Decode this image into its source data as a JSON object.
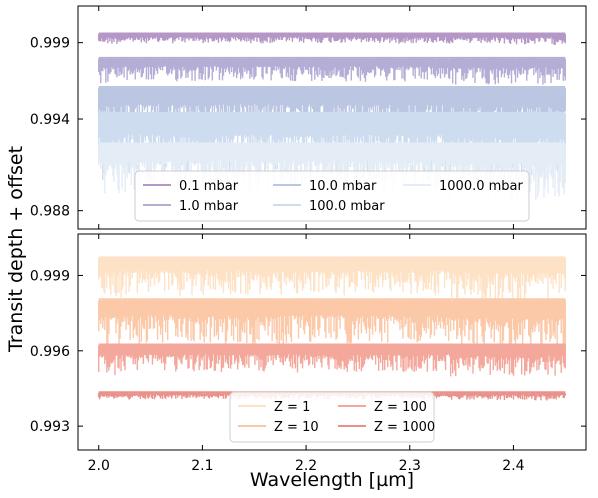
{
  "figure": {
    "ylabel": "Transit depth + offset",
    "xlabel": "Wavelength [µm]"
  },
  "chart_data": [
    {
      "type": "line",
      "panel": "top",
      "x_range": [
        2.0,
        2.45
      ],
      "xlim": [
        1.98,
        2.47
      ],
      "ylim": [
        0.9868,
        1.0014
      ],
      "yticks": [
        0.988,
        0.994,
        0.999
      ],
      "xticks": [
        2.0,
        2.1,
        2.2,
        2.3,
        2.4
      ],
      "xtick_labels_visible": false,
      "legend": {
        "placement": "lower-center",
        "columns": 3
      },
      "series": [
        {
          "name": "0.1 mbar",
          "baseline": 0.9996,
          "absorption_depth": 0.0006,
          "color": "#b497c6"
        },
        {
          "name": "1.0 mbar",
          "baseline": 0.998,
          "absorption_depth": 0.0015,
          "color": "#b4aed6"
        },
        {
          "name": "10.0 mbar",
          "baseline": 0.9961,
          "absorption_depth": 0.0032,
          "color": "#bac6e2"
        },
        {
          "name": "100.0 mbar",
          "baseline": 0.9944,
          "absorption_depth": 0.004,
          "color": "#cddcef"
        },
        {
          "name": "1000.0 mbar",
          "baseline": 0.9924,
          "absorption_depth": 0.0032,
          "color": "#e4ecf6"
        }
      ]
    },
    {
      "type": "line",
      "panel": "bottom",
      "x_range": [
        2.0,
        2.45
      ],
      "xlim": [
        1.98,
        2.47
      ],
      "ylim": [
        0.99205,
        1.00065
      ],
      "yticks": [
        0.993,
        0.996,
        0.999
      ],
      "xticks": [
        2.0,
        2.1,
        2.2,
        2.3,
        2.4
      ],
      "xlabel": "Wavelength [µm]",
      "legend": {
        "placement": "lower-center",
        "columns": 2
      },
      "series": [
        {
          "name": "Z = 1",
          "baseline": 0.99972,
          "absorption_depth": 0.0015,
          "color": "#fde2c6"
        },
        {
          "name": "Z = 10",
          "baseline": 0.99805,
          "absorption_depth": 0.0018,
          "color": "#fbc8a8"
        },
        {
          "name": "Z = 100",
          "baseline": 0.99625,
          "absorption_depth": 0.0011,
          "color": "#f4a89c"
        },
        {
          "name": "Z = 1000",
          "baseline": 0.99435,
          "absorption_depth": 0.00025,
          "color": "#e9918a"
        }
      ]
    }
  ]
}
